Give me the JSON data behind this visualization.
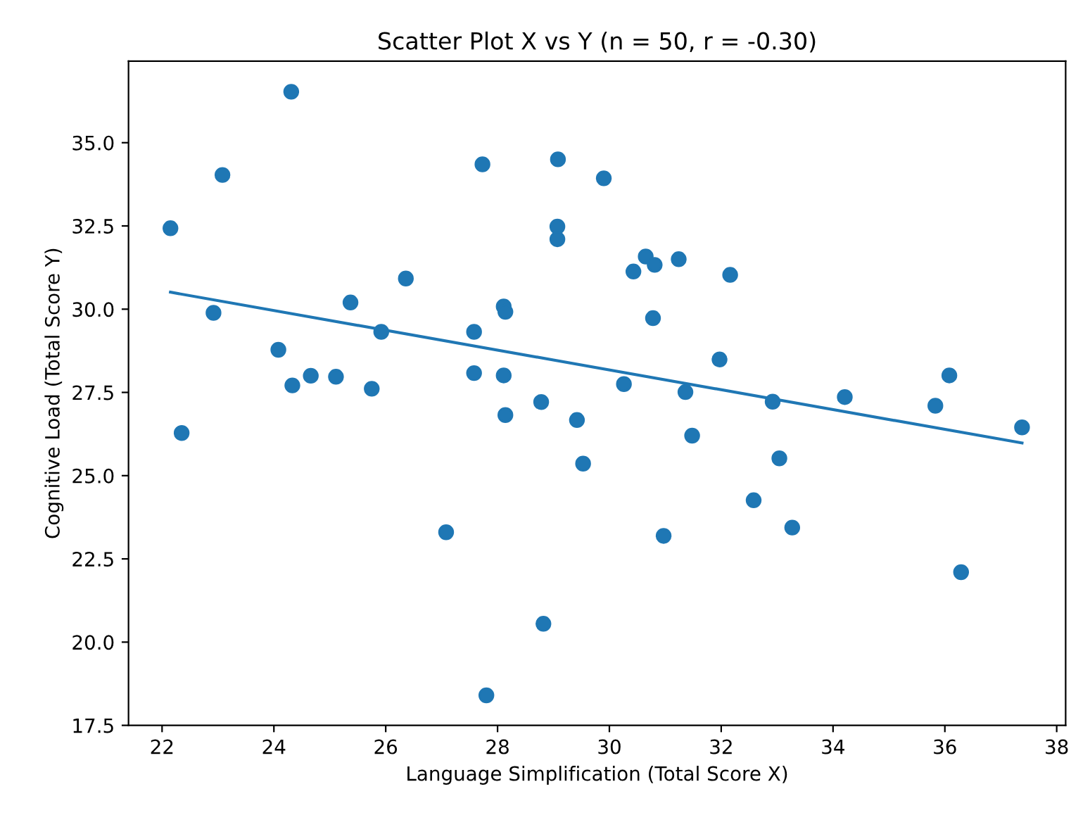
{
  "chart_data": {
    "type": "scatter",
    "title": "Scatter Plot X vs Y (n = 50, r = -0.30)",
    "xlabel": "Language Simplification (Total Score X)",
    "ylabel": "Cognitive Load (Total Score Y)",
    "xlim": [
      21.4,
      38.16
    ],
    "ylim": [
      17.5,
      37.45
    ],
    "xticks": [
      22,
      24,
      26,
      28,
      30,
      32,
      34,
      36,
      38
    ],
    "yticks": [
      {
        "value": 17.5,
        "label": "17.5"
      },
      {
        "value": 20,
        "label": "20.0"
      },
      {
        "value": 22.5,
        "label": "22.5"
      },
      {
        "value": 25,
        "label": "25.0"
      },
      {
        "value": 27.5,
        "label": "27.5"
      },
      {
        "value": 30,
        "label": "30.0"
      },
      {
        "value": 32.5,
        "label": "32.5"
      },
      {
        "value": 35,
        "label": "35.0"
      }
    ],
    "grid": false,
    "series": [
      {
        "marker": "circle",
        "color": "#1f77b4",
        "x": [
          22.15,
          23.08,
          24.31,
          27.73,
          29.08,
          29.9,
          29.07,
          29.07,
          26.36,
          25.37,
          22.92,
          25.92,
          27.58,
          28.11,
          28.14,
          24.08,
          24.33,
          24.66,
          25.11,
          25.75,
          27.58,
          28.11,
          28.78,
          30.65,
          30.43,
          30.81,
          31.24,
          32.16,
          30.78,
          31.97,
          30.26,
          31.36,
          32.92,
          34.21,
          36.08,
          35.83,
          22.35,
          28.14,
          29.42,
          29.53,
          27.08,
          28.82,
          27.8,
          31.48,
          33.04,
          32.58,
          33.27,
          30.97,
          36.29,
          37.38
        ],
        "values": [
          32.43,
          34.03,
          36.53,
          34.35,
          34.5,
          33.93,
          32.48,
          32.1,
          30.92,
          30.2,
          29.89,
          29.32,
          29.32,
          30.08,
          29.92,
          28.78,
          27.71,
          28.0,
          27.97,
          27.61,
          28.08,
          28.01,
          27.21,
          31.58,
          31.13,
          31.33,
          31.5,
          31.03,
          29.73,
          28.49,
          27.75,
          27.51,
          27.22,
          27.36,
          28.01,
          27.1,
          26.28,
          26.82,
          26.67,
          25.36,
          23.3,
          20.55,
          18.4,
          26.2,
          25.52,
          24.26,
          23.44,
          23.19,
          22.1,
          26.45
        ]
      },
      {
        "type": "line",
        "marker": "none",
        "line_style": "solid",
        "color": "#1f77b4",
        "x": [
          22.15,
          37.38
        ],
        "values": [
          30.51,
          25.98
        ]
      }
    ]
  }
}
